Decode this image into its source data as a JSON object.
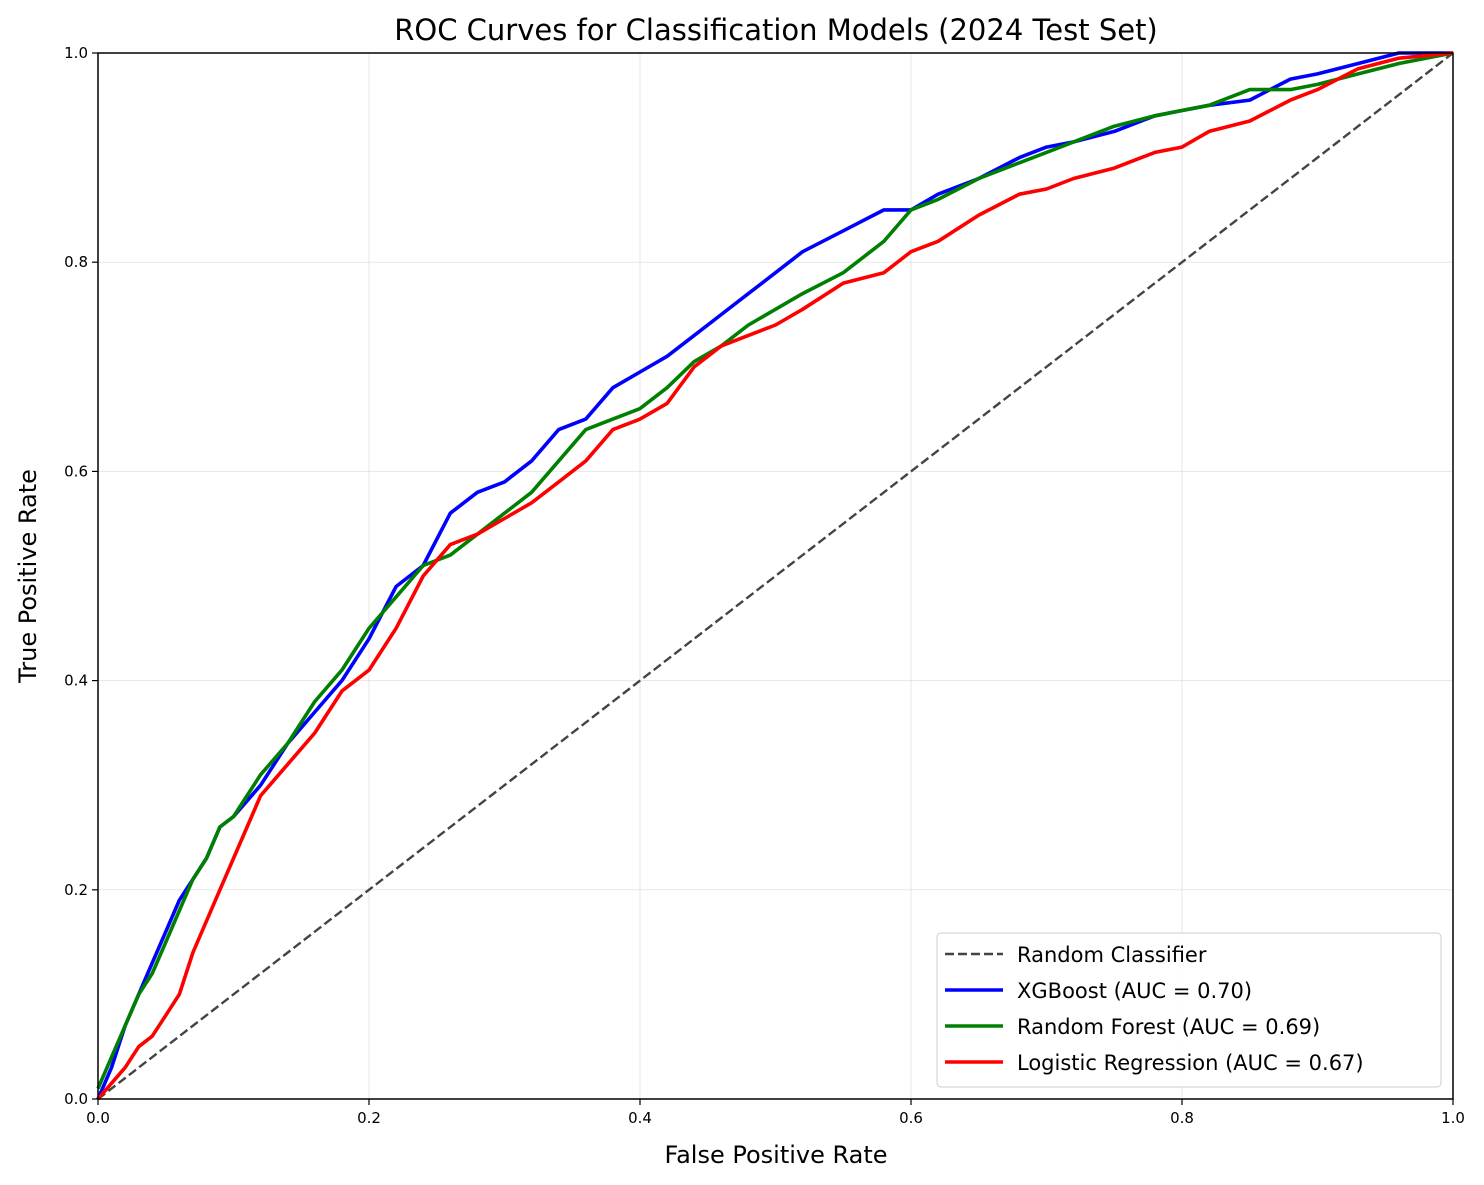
{
  "chart_data": {
    "type": "line",
    "title": "ROC Curves for Classification Models (2024 Test Set)",
    "xlabel": "False Positive Rate",
    "ylabel": "True Positive Rate",
    "xlim": [
      0.0,
      1.0
    ],
    "ylim": [
      0.0,
      1.0
    ],
    "xticks": [
      "0.0",
      "0.2",
      "0.4",
      "0.6",
      "0.8",
      "1.0"
    ],
    "yticks": [
      "0.0",
      "0.2",
      "0.4",
      "0.6",
      "0.8",
      "1.0"
    ],
    "grid": true,
    "legend_position": "lower-right",
    "series": [
      {
        "name": "Random Classifier",
        "color": "#444444",
        "style": "dashed",
        "x": [
          0.0,
          1.0
        ],
        "y": [
          0.0,
          1.0
        ]
      },
      {
        "name": "XGBoost (AUC = 0.70)",
        "color": "#0000ff",
        "style": "solid",
        "x": [
          0.0,
          0.01,
          0.02,
          0.03,
          0.04,
          0.05,
          0.06,
          0.07,
          0.08,
          0.09,
          0.1,
          0.12,
          0.14,
          0.16,
          0.18,
          0.2,
          0.22,
          0.24,
          0.26,
          0.28,
          0.3,
          0.32,
          0.34,
          0.36,
          0.38,
          0.4,
          0.42,
          0.44,
          0.46,
          0.48,
          0.5,
          0.52,
          0.55,
          0.58,
          0.6,
          0.62,
          0.65,
          0.68,
          0.7,
          0.72,
          0.75,
          0.78,
          0.8,
          0.82,
          0.85,
          0.88,
          0.9,
          0.93,
          0.96,
          1.0
        ],
        "y": [
          0.0,
          0.03,
          0.07,
          0.1,
          0.13,
          0.16,
          0.19,
          0.21,
          0.23,
          0.26,
          0.27,
          0.3,
          0.34,
          0.37,
          0.4,
          0.44,
          0.49,
          0.51,
          0.56,
          0.58,
          0.59,
          0.61,
          0.64,
          0.65,
          0.68,
          0.695,
          0.71,
          0.73,
          0.75,
          0.77,
          0.79,
          0.81,
          0.83,
          0.85,
          0.85,
          0.865,
          0.88,
          0.9,
          0.91,
          0.915,
          0.925,
          0.94,
          0.945,
          0.95,
          0.955,
          0.975,
          0.98,
          0.99,
          1.0,
          1.0
        ]
      },
      {
        "name": "Random Forest (AUC = 0.69)",
        "color": "#008000",
        "style": "solid",
        "x": [
          0.0,
          0.01,
          0.02,
          0.03,
          0.04,
          0.05,
          0.06,
          0.07,
          0.08,
          0.09,
          0.1,
          0.12,
          0.14,
          0.16,
          0.18,
          0.2,
          0.22,
          0.24,
          0.26,
          0.28,
          0.3,
          0.32,
          0.34,
          0.36,
          0.38,
          0.4,
          0.42,
          0.44,
          0.46,
          0.48,
          0.5,
          0.52,
          0.55,
          0.58,
          0.6,
          0.62,
          0.65,
          0.68,
          0.7,
          0.72,
          0.75,
          0.78,
          0.8,
          0.82,
          0.85,
          0.88,
          0.9,
          0.93,
          0.96,
          1.0
        ],
        "y": [
          0.01,
          0.04,
          0.07,
          0.1,
          0.12,
          0.15,
          0.18,
          0.21,
          0.23,
          0.26,
          0.27,
          0.31,
          0.34,
          0.38,
          0.41,
          0.45,
          0.48,
          0.51,
          0.52,
          0.54,
          0.56,
          0.58,
          0.61,
          0.64,
          0.65,
          0.66,
          0.68,
          0.705,
          0.72,
          0.74,
          0.755,
          0.77,
          0.79,
          0.82,
          0.85,
          0.86,
          0.88,
          0.895,
          0.905,
          0.915,
          0.93,
          0.94,
          0.945,
          0.95,
          0.965,
          0.965,
          0.97,
          0.98,
          0.99,
          1.0
        ]
      },
      {
        "name": "Logistic Regression (AUC = 0.67)",
        "color": "#ff0000",
        "style": "solid",
        "x": [
          0.0,
          0.01,
          0.02,
          0.03,
          0.04,
          0.05,
          0.06,
          0.07,
          0.08,
          0.09,
          0.1,
          0.12,
          0.14,
          0.16,
          0.18,
          0.2,
          0.22,
          0.24,
          0.26,
          0.28,
          0.3,
          0.32,
          0.34,
          0.36,
          0.38,
          0.4,
          0.42,
          0.44,
          0.46,
          0.48,
          0.5,
          0.52,
          0.55,
          0.58,
          0.6,
          0.62,
          0.65,
          0.68,
          0.7,
          0.72,
          0.75,
          0.78,
          0.8,
          0.82,
          0.85,
          0.88,
          0.9,
          0.93,
          0.96,
          1.0
        ],
        "y": [
          0.0,
          0.015,
          0.03,
          0.05,
          0.06,
          0.08,
          0.1,
          0.14,
          0.17,
          0.2,
          0.23,
          0.29,
          0.32,
          0.35,
          0.39,
          0.41,
          0.45,
          0.5,
          0.53,
          0.54,
          0.555,
          0.57,
          0.59,
          0.61,
          0.64,
          0.65,
          0.665,
          0.7,
          0.72,
          0.73,
          0.74,
          0.755,
          0.78,
          0.79,
          0.81,
          0.82,
          0.845,
          0.865,
          0.87,
          0.88,
          0.89,
          0.905,
          0.91,
          0.925,
          0.935,
          0.955,
          0.965,
          0.985,
          0.995,
          1.0
        ]
      }
    ]
  }
}
